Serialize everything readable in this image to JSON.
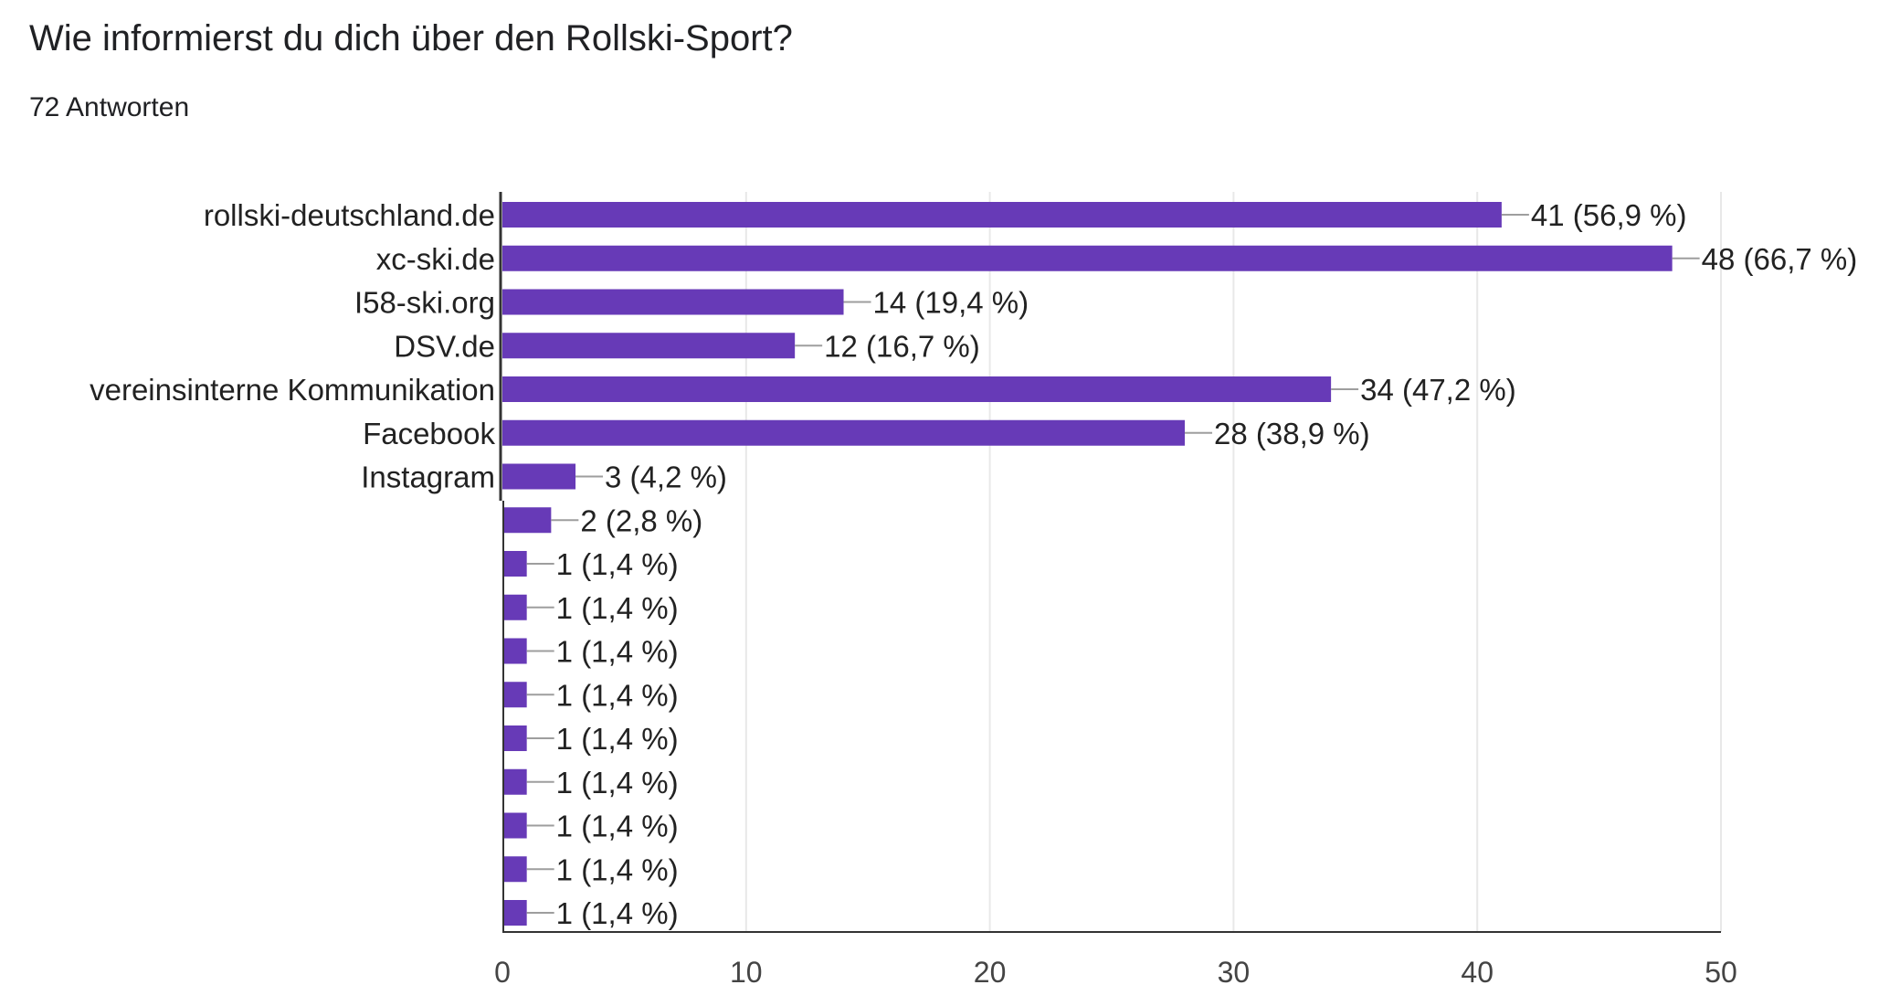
{
  "header": {
    "question": "Wie informierst du dich über den Rollski-Sport?",
    "responses": "72 Antworten"
  },
  "chart_data": {
    "type": "bar",
    "orientation": "horizontal",
    "title": "Wie informierst du dich über den Rollski-Sport?",
    "subtitle": "72 Antworten",
    "categories": [
      "rollski-deutschland.de",
      "xc-ski.de",
      "I58-ski.org",
      "DSV.de",
      "vereinsinterne Kommunikation",
      "Facebook",
      "Instagram",
      "",
      "",
      "",
      "",
      "",
      "",
      "",
      "",
      "",
      ""
    ],
    "values": [
      41,
      48,
      14,
      12,
      34,
      28,
      3,
      2,
      1,
      1,
      1,
      1,
      1,
      1,
      1,
      1,
      1
    ],
    "value_labels": [
      "41 (56,9 %)",
      "48 (66,7 %)",
      "14 (19,4 %)",
      "12 (16,7 %)",
      "34 (47,2 %)",
      "28 (38,9 %)",
      "3 (4,2 %)",
      "2 (2,8 %)",
      "1 (1,4 %)",
      "1 (1,4 %)",
      "1 (1,4 %)",
      "1 (1,4 %)",
      "1 (1,4 %)",
      "1 (1,4 %)",
      "1 (1,4 %)",
      "1 (1,4 %)",
      "1 (1,4 %)"
    ],
    "xlim": [
      0,
      50
    ],
    "xticks": [
      0,
      10,
      20,
      30,
      40,
      50
    ],
    "xlabel": "",
    "ylabel": "",
    "grid": true,
    "bar_color": "#673ab7",
    "grid_color": "#e8e8e8",
    "connector_color": "#9e9e9e"
  }
}
